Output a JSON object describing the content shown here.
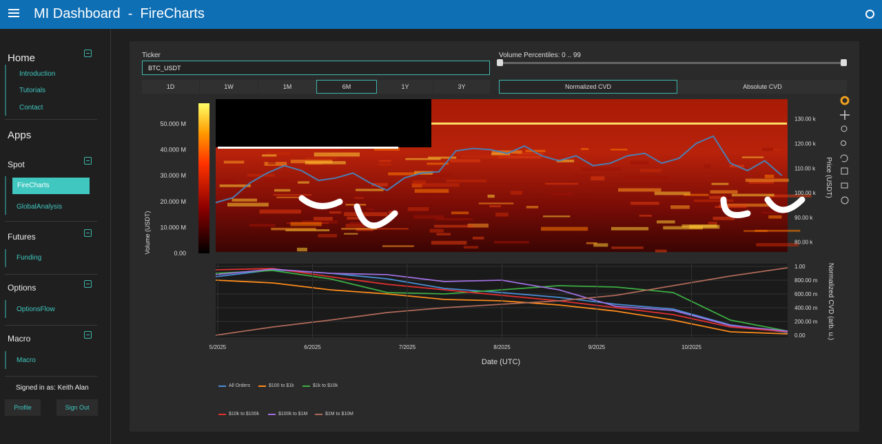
{
  "header": {
    "title": "MI Dashboard  -  FireCharts"
  },
  "sidebar": {
    "home": {
      "title": "Home",
      "links": [
        "Introduction",
        "Tutorials",
        "Contact"
      ]
    },
    "apps_title": "Apps",
    "spot": {
      "title": "Spot",
      "links": [
        "FireCharts",
        "GlobalAnalysis"
      ]
    },
    "futures": {
      "title": "Futures",
      "links": [
        "Funding"
      ]
    },
    "options": {
      "title": "Options",
      "links": [
        "OptionsFlow"
      ]
    },
    "macro": {
      "title": "Macro",
      "links": [
        "Macro"
      ]
    },
    "signed_in": "Signed in as: Keith Alan",
    "profile": "Profile",
    "sign_out": "Sign Out"
  },
  "controls": {
    "ticker_label": "Ticker",
    "ticker_value": "BTC_USDT",
    "percentile_label": "Volume Percentiles: 0 .. 99",
    "percentile_range": [
      0,
      99
    ],
    "ranges": [
      "1D",
      "1W",
      "1M",
      "6M",
      "1Y",
      "3Y"
    ],
    "selected_range": "6M",
    "cvd_modes": [
      "Normalized CVD",
      "Absolute CVD"
    ],
    "selected_cvd": "Normalized CVD"
  },
  "colors": {
    "accent": "#3fc7c0",
    "topbar": "#0f6fb5",
    "price_line": "#4a7fb5"
  },
  "icons": [
    "plotly-logo-icon",
    "pan-icon",
    "zoom-icon",
    "zoom-in-out-icon",
    "reset-axes-icon",
    "download-icon",
    "hover-icon",
    "spike-icon"
  ],
  "chart_data": [
    {
      "type": "heatmap",
      "title": "",
      "xlabel": "Date (UTC)",
      "ylabel_left": "Volume (USDT)",
      "ylabel_right": "Price (USDT)",
      "colorbar_ticks": [
        "0.00",
        "10.000 M",
        "20.000 M",
        "30.000 M",
        "40.000 M",
        "50.000 M"
      ],
      "price_ticks": [
        "80.00 k",
        "90.00 k",
        "100.00 k",
        "110.00 k",
        "120.00 k",
        "130.00 k"
      ],
      "price_ylim": [
        76000,
        138000
      ],
      "x_ticks": [
        "5/2025",
        "6/2025",
        "7/2025",
        "8/2025",
        "9/2025",
        "10/2025"
      ],
      "price_series": {
        "name": "Price",
        "x": [
          0,
          0.03,
          0.06,
          0.09,
          0.12,
          0.15,
          0.18,
          0.21,
          0.24,
          0.27,
          0.3,
          0.33,
          0.36,
          0.39,
          0.42,
          0.45,
          0.48,
          0.51,
          0.54,
          0.57,
          0.6,
          0.63,
          0.66,
          0.69,
          0.72,
          0.75,
          0.78,
          0.81,
          0.84,
          0.87,
          0.9,
          0.93,
          0.96,
          0.99
        ],
        "values": [
          96000,
          98000,
          104000,
          108000,
          111000,
          109000,
          105000,
          106000,
          108000,
          104000,
          101000,
          106000,
          108000,
          108500,
          117000,
          118000,
          117500,
          116000,
          119000,
          115000,
          113000,
          115000,
          111000,
          112000,
          115000,
          116000,
          112000,
          114000,
          120000,
          123000,
          112000,
          109000,
          113000,
          107000
        ]
      }
    },
    {
      "type": "line",
      "xlabel": "Date (UTC)",
      "ylabel": "Normalized CVD (arb. u.)",
      "y_ticks": [
        "0.00",
        "200.00 m",
        "400.00 m",
        "600.00 m",
        "800.00 m",
        "1.00"
      ],
      "ylim": [
        0,
        1
      ],
      "x": [
        0,
        0.1,
        0.2,
        0.3,
        0.4,
        0.5,
        0.6,
        0.7,
        0.8,
        0.9,
        1.0
      ],
      "series": [
        {
          "name": "All Orders",
          "color": "#4a90d9",
          "values": [
            0.85,
            0.95,
            0.9,
            0.82,
            0.68,
            0.62,
            0.55,
            0.45,
            0.38,
            0.15,
            0.04
          ]
        },
        {
          "name": "$100 to $1k",
          "color": "#ff8c1a",
          "values": [
            0.8,
            0.76,
            0.66,
            0.6,
            0.52,
            0.5,
            0.44,
            0.35,
            0.22,
            0.05,
            0.02
          ]
        },
        {
          "name": "$1k to $10k",
          "color": "#3cb043",
          "values": [
            0.9,
            0.94,
            0.82,
            0.62,
            0.6,
            0.66,
            0.72,
            0.7,
            0.62,
            0.22,
            0.06
          ]
        },
        {
          "name": "$10k to $100k",
          "color": "#e53030",
          "values": [
            0.95,
            0.97,
            0.85,
            0.74,
            0.66,
            0.58,
            0.5,
            0.4,
            0.3,
            0.12,
            0.05
          ]
        },
        {
          "name": "$100k to $1M",
          "color": "#a070e0",
          "values": [
            0.88,
            0.96,
            0.9,
            0.88,
            0.78,
            0.8,
            0.66,
            0.42,
            0.36,
            0.14,
            0.06
          ]
        },
        {
          "name": "$1M to $10M",
          "color": "#b06a5a",
          "values": [
            0.0,
            0.12,
            0.22,
            0.33,
            0.4,
            0.45,
            0.5,
            0.58,
            0.72,
            0.86,
            0.98
          ]
        }
      ]
    }
  ]
}
